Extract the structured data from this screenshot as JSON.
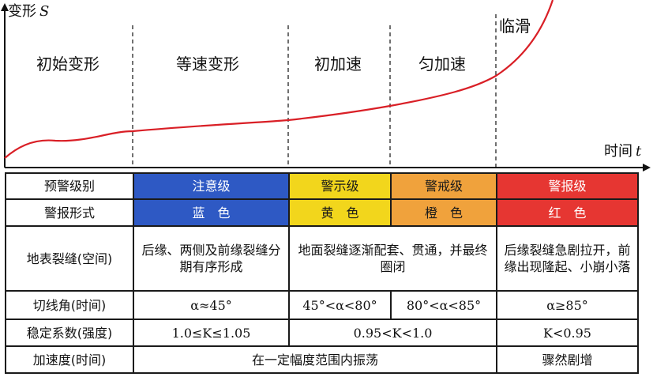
{
  "chart_data": {
    "type": "line",
    "y_axis_label": "变形",
    "y_axis_symbol": "S",
    "x_axis_label": "时间",
    "x_axis_symbol": "t",
    "stages": [
      "初始变形",
      "等速变形",
      "初加速",
      "匀加速",
      "临滑"
    ],
    "curve": {
      "color": "#d91f26",
      "description_shape": "creep curve"
    }
  },
  "table": {
    "header": [
      "预警级别",
      "注意级",
      "警示级",
      "警戒级",
      "警报级"
    ],
    "form": [
      "警报形式",
      "蓝　色",
      "黄　色",
      "橙　色",
      "红　色"
    ],
    "crack_label": "地表裂缝(空间)",
    "crack_values": [
      "后缘、两侧及前缘裂缝分期有序形成",
      "地面裂缝逐渐配套、贯通，并最终圈闭",
      "后缘裂缝急剧拉开，前缘出现隆起、小崩小落"
    ],
    "angle_label": "切线角(时间)",
    "angle_values": [
      "α≈45°",
      "45°<α<80°",
      "80°<α<85°",
      "α≥85°"
    ],
    "k_label": "稳定系数(强度)",
    "k_values": [
      "1.0≤K≤1.05",
      "0.95<K<1.0",
      "K<0.95"
    ],
    "acc_label": "加速度(时间)",
    "acc_values": [
      "在一定幅度范围内振荡",
      "骤然剧增"
    ]
  },
  "colors": {
    "blue": "#2e59c4",
    "yellow": "#f2d61c",
    "orange": "#f0a23c",
    "red": "#e63632",
    "curve": "#d91f26"
  }
}
